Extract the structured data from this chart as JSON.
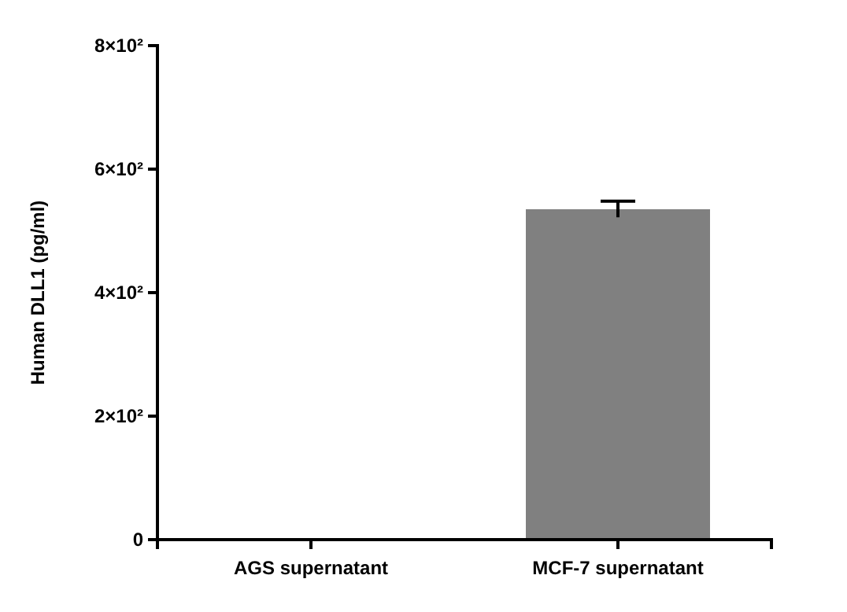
{
  "chart_data": {
    "type": "bar",
    "ylabel": "Human DLL1 (pg/ml)",
    "categories": [
      "AGS supernatant",
      "MCF-7 supernatant"
    ],
    "values": [
      0,
      535
    ],
    "errors": [
      null,
      13
    ],
    "color": "#808080",
    "ylim": [
      0,
      800
    ],
    "yticks": [
      0,
      {
        "value": 200,
        "label": "2×10²"
      },
      {
        "value": 400,
        "label": "4×10²"
      },
      {
        "value": 600,
        "label": "6×10²"
      },
      {
        "value": 800,
        "label": "8×10²"
      }
    ],
    "grid": false
  }
}
